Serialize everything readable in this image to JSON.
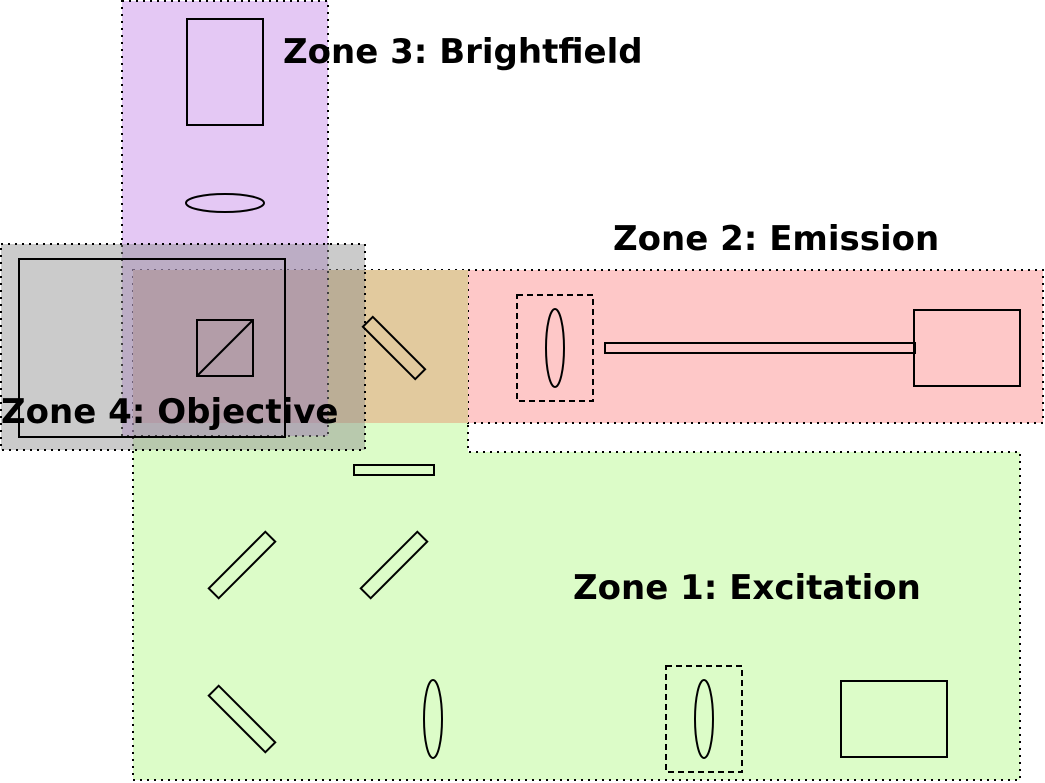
{
  "zones": {
    "excitation": {
      "label": "Zone 1: Excitation",
      "color": "#dcfcc8"
    },
    "emission": {
      "label": "Zone 2: Emission",
      "color": "#fec8c8"
    },
    "brightfield": {
      "label": "Zone 3: Brightfield",
      "color": "#d8b0ec"
    },
    "objective": {
      "label": "Zone 4: Objective",
      "color": "#a8a8a8"
    }
  },
  "colors": {
    "line": "#000000",
    "overlap_emission_excitation": "#e2ca9e"
  }
}
